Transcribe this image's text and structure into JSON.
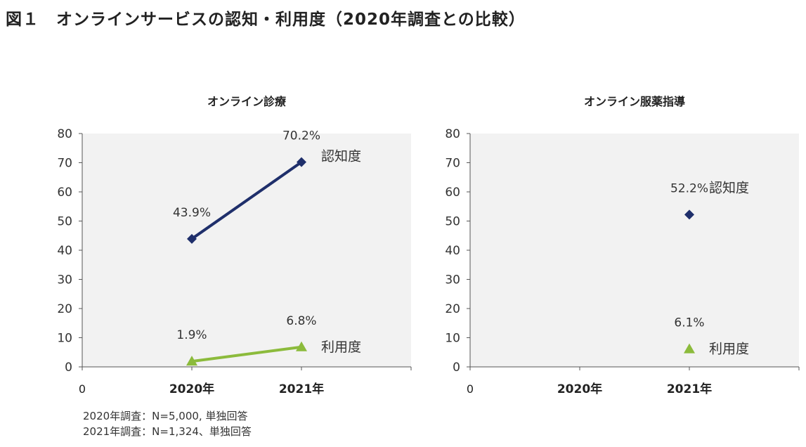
{
  "figure": {
    "title": "図１　オンラインサービスの認知・利用度（2020年調査との比較）"
  },
  "chart_data": [
    {
      "type": "line",
      "title": "オンライン診療",
      "x_tick_labels": [
        "0",
        "2020年",
        "2021年"
      ],
      "ylim": [
        0,
        80
      ],
      "yticks": [
        0,
        10,
        20,
        30,
        40,
        50,
        60,
        70,
        80
      ],
      "grid": false,
      "background": "#f2f2f2",
      "series": [
        {
          "name": "認知度",
          "marker": "diamond",
          "color": "#1f2f6b",
          "x": [
            "2020年",
            "2021年"
          ],
          "values": [
            43.9,
            70.2
          ],
          "labels": [
            "43.9%",
            "70.2%"
          ]
        },
        {
          "name": "利用度",
          "marker": "triangle",
          "color": "#8cbb3c",
          "x": [
            "2020年",
            "2021年"
          ],
          "values": [
            1.9,
            6.8
          ],
          "labels": [
            "1.9%",
            "6.8%"
          ]
        }
      ]
    },
    {
      "type": "scatter",
      "title": "オンライン服薬指導",
      "x_tick_labels": [
        "0",
        "2020年",
        "2021年"
      ],
      "ylim": [
        0,
        80
      ],
      "yticks": [
        0,
        10,
        20,
        30,
        40,
        50,
        60,
        70,
        80
      ],
      "grid": false,
      "background": "#f2f2f2",
      "series": [
        {
          "name": "認知度",
          "marker": "diamond",
          "color": "#1f2f6b",
          "x": [
            "2021年"
          ],
          "values": [
            52.2
          ],
          "labels": [
            "52.2%"
          ]
        },
        {
          "name": "利用度",
          "marker": "triangle",
          "color": "#8cbb3c",
          "x": [
            "2021年"
          ],
          "values": [
            6.1
          ],
          "labels": [
            "6.1%"
          ]
        }
      ]
    }
  ],
  "footnotes": [
    "2020年調査：N=5,000, 単独回答",
    "2021年調査：N=1,324、単独回答"
  ]
}
